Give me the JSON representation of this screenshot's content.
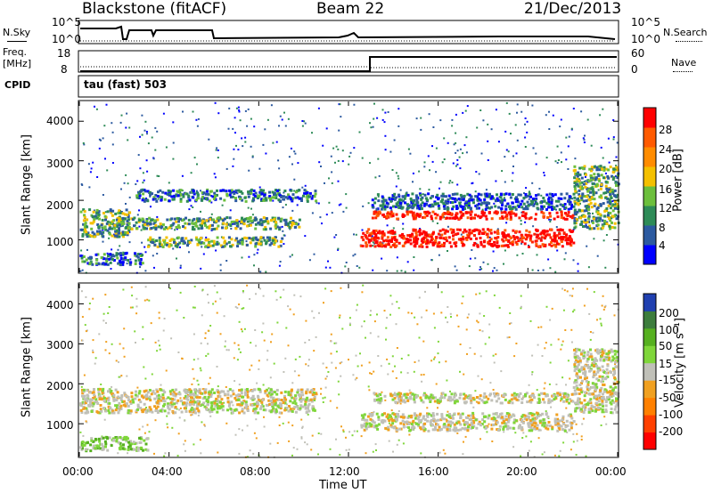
{
  "header": {
    "station": "Blackstone (fitACF)",
    "beam": "Beam 22",
    "date": "21/Dec/2013"
  },
  "noise_panel": {
    "left_label": "N.Sky",
    "right_label": "N.Search",
    "left_ticks": [
      "10^5",
      "10^0"
    ],
    "right_ticks": [
      "10^5",
      "10^0"
    ]
  },
  "freq_panel": {
    "left_label_1": "Freq.",
    "left_label_2": "[MHz]",
    "right_label": "Nave",
    "left_ticks": [
      "18",
      "8"
    ],
    "right_ticks": [
      "60",
      "0"
    ]
  },
  "cpid": {
    "label": "CPID",
    "value": "tau (fast) 503"
  },
  "chart_data": [
    {
      "type": "heatmap",
      "name_shown": "Power",
      "ylabel": "Slant Range [km]",
      "yticks": [
        "4000",
        "3000",
        "2000",
        "1000"
      ],
      "ylim": [
        180,
        4500
      ],
      "xlim_hours": [
        0,
        24
      ],
      "colorbar": {
        "label": "Power [dB]",
        "ticks": [
          "28",
          "24",
          "20",
          "16",
          "12",
          "8",
          "4"
        ],
        "colors": [
          "#0000ff",
          "#2c5aa0",
          "#2e8b57",
          "#6cbf3c",
          "#f4c000",
          "#ff8c00",
          "#ff5a00",
          "#ff0000"
        ]
      },
      "bands": [
        {
          "t0": 0.0,
          "t1": 2.2,
          "r0": 1100,
          "r1": 1800,
          "level": "mid"
        },
        {
          "t0": 0.0,
          "t1": 2.8,
          "r0": 400,
          "r1": 700,
          "level": "low-mid"
        },
        {
          "t0": 1.5,
          "t1": 9.8,
          "r0": 1300,
          "r1": 1600,
          "level": "mid"
        },
        {
          "t0": 2.5,
          "t1": 10.5,
          "r0": 2000,
          "r1": 2300,
          "level": "low-mid"
        },
        {
          "t0": 3.0,
          "t1": 9.0,
          "r0": 850,
          "r1": 1100,
          "level": "mid"
        },
        {
          "t0": 12.5,
          "t1": 22.0,
          "r0": 850,
          "r1": 1300,
          "level": "high"
        },
        {
          "t0": 13.0,
          "t1": 22.0,
          "r0": 1550,
          "r1": 1750,
          "level": "high"
        },
        {
          "t0": 13.0,
          "t1": 22.0,
          "r0": 1800,
          "r1": 2200,
          "level": "low"
        },
        {
          "t0": 22.0,
          "t1": 24.0,
          "r0": 1300,
          "r1": 2900,
          "level": "mid"
        }
      ]
    },
    {
      "type": "heatmap",
      "name_shown": "Velocity",
      "ylabel": "Slant Range [km]",
      "yticks": [
        "4000",
        "3000",
        "2000",
        "1000"
      ],
      "ylim": [
        180,
        4500
      ],
      "xlim_hours": [
        0,
        24
      ],
      "xticks": [
        "00:00",
        "04:00",
        "08:00",
        "12:00",
        "16:00",
        "20:00",
        "00:00"
      ],
      "xlabel": "Time UT",
      "colorbar": {
        "label": "Velocity [m s⁻¹]",
        "ticks": [
          "200",
          "100",
          "50",
          "15",
          "-15",
          "-50",
          "-100",
          "-200"
        ],
        "colors": [
          "#2040b0",
          "#3d7d3d",
          "#56b020",
          "#7fd63a",
          "#c0c0b8",
          "#f0a020",
          "#ff8000",
          "#ff4000",
          "#ff0000"
        ]
      },
      "bands": [
        {
          "t0": 0.0,
          "t1": 10.5,
          "r0": 1300,
          "r1": 1900,
          "level": "ground"
        },
        {
          "t0": 0.0,
          "t1": 3.0,
          "r0": 350,
          "r1": 700,
          "level": "toward"
        },
        {
          "t0": 12.5,
          "t1": 22.0,
          "r0": 850,
          "r1": 1300,
          "level": "ground"
        },
        {
          "t0": 13.0,
          "t1": 22.0,
          "r0": 1550,
          "r1": 1800,
          "level": "ground"
        },
        {
          "t0": 22.0,
          "t1": 24.0,
          "r0": 1300,
          "r1": 2900,
          "level": "ground"
        }
      ]
    }
  ]
}
